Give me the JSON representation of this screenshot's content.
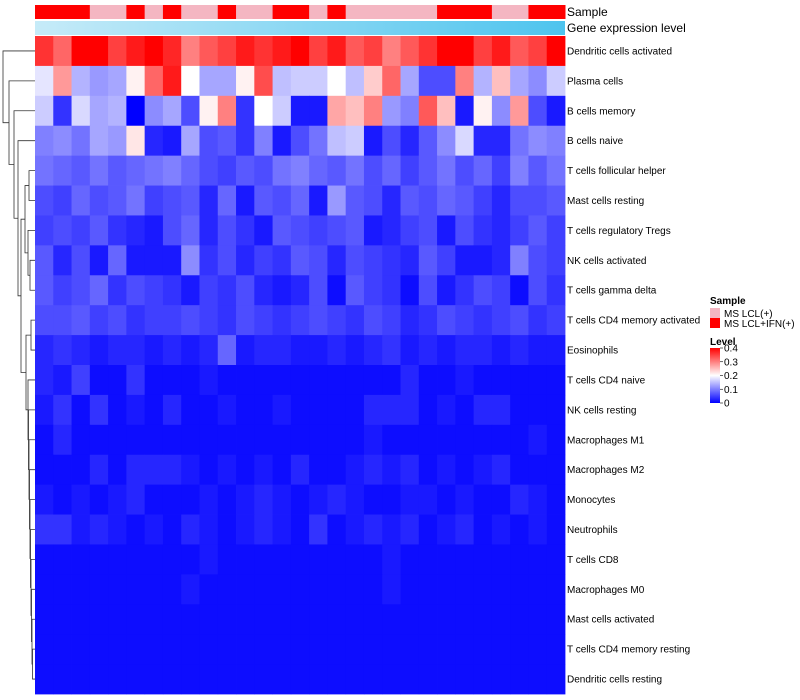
{
  "chart_data": {
    "type": "heatmap",
    "title": "",
    "annotation_tracks": [
      {
        "name": "Sample",
        "label": "Sample"
      },
      {
        "name": "Gene expression level",
        "label": "Gene expression level"
      }
    ],
    "sample_track": [
      1,
      1,
      1,
      0,
      0,
      1,
      0,
      1,
      0,
      0,
      1,
      0,
      0,
      1,
      1,
      0,
      1,
      0,
      0,
      0,
      0,
      0,
      1,
      1,
      1,
      0,
      0,
      1,
      1
    ],
    "expression_track": [
      0.05,
      0.1,
      0.15,
      0.2,
      0.25,
      0.3,
      0.35,
      0.4,
      0.45,
      0.5,
      0.55,
      0.6,
      0.62,
      0.65,
      0.68,
      0.7,
      0.72,
      0.75,
      0.78,
      0.8,
      0.82,
      0.85,
      0.88,
      0.9,
      0.92,
      0.94,
      0.96,
      0.98,
      1.0
    ],
    "rows": [
      "Dendritic cells activated",
      "Plasma cells",
      "B cells memory",
      "B cells naive",
      "T cells follicular helper",
      "Mast cells resting",
      "T cells regulatory  Tregs",
      "NK cells activated",
      "T cells gamma delta",
      "T cells CD4 memory activated",
      "Eosinophils",
      "T cells CD4 naive",
      "NK cells resting",
      "Macrophages M1",
      "Macrophages M2",
      "Monocytes",
      "Neutrophils",
      "T cells CD8",
      "Macrophages M0",
      "Mast cells activated",
      "T cells CD4 memory resting",
      "Dendritic cells resting"
    ],
    "values": [
      [
        0.36,
        0.32,
        0.4,
        0.4,
        0.35,
        0.38,
        0.4,
        0.37,
        0.3,
        0.33,
        0.35,
        0.38,
        0.36,
        0.38,
        0.4,
        0.35,
        0.38,
        0.33,
        0.35,
        0.3,
        0.33,
        0.36,
        0.4,
        0.4,
        0.35,
        0.38,
        0.33,
        0.35,
        0.4
      ],
      [
        0.18,
        0.28,
        0.14,
        0.12,
        0.13,
        0.21,
        0.32,
        0.38,
        0.2,
        0.13,
        0.13,
        0.21,
        0.34,
        0.15,
        0.16,
        0.16,
        0.2,
        0.15,
        0.24,
        0.32,
        0.13,
        0.06,
        0.06,
        0.3,
        0.14,
        0.25,
        0.13,
        0.11,
        0.16
      ],
      [
        0.16,
        0.04,
        0.17,
        0.13,
        0.14,
        0.0,
        0.11,
        0.13,
        0.06,
        0.21,
        0.3,
        0.04,
        0.2,
        0.16,
        0.02,
        0.02,
        0.27,
        0.25,
        0.3,
        0.12,
        0.1,
        0.33,
        0.25,
        0.02,
        0.21,
        0.11,
        0.28,
        0.06,
        0.02
      ],
      [
        0.1,
        0.11,
        0.09,
        0.13,
        0.12,
        0.22,
        0.03,
        0.02,
        0.13,
        0.06,
        0.07,
        0.04,
        0.1,
        0.02,
        0.06,
        0.09,
        0.15,
        0.16,
        0.02,
        0.06,
        0.03,
        0.07,
        0.11,
        0.17,
        0.03,
        0.03,
        0.09,
        0.11,
        0.1
      ],
      [
        0.09,
        0.08,
        0.07,
        0.09,
        0.07,
        0.08,
        0.09,
        0.1,
        0.08,
        0.06,
        0.05,
        0.07,
        0.06,
        0.09,
        0.1,
        0.08,
        0.07,
        0.09,
        0.06,
        0.08,
        0.05,
        0.07,
        0.09,
        0.06,
        0.08,
        0.05,
        0.1,
        0.07,
        0.09
      ],
      [
        0.06,
        0.05,
        0.08,
        0.06,
        0.07,
        0.09,
        0.05,
        0.06,
        0.07,
        0.03,
        0.08,
        0.02,
        0.07,
        0.06,
        0.08,
        0.02,
        0.12,
        0.07,
        0.06,
        0.03,
        0.07,
        0.06,
        0.08,
        0.07,
        0.05,
        0.03,
        0.06,
        0.06,
        0.07
      ],
      [
        0.05,
        0.06,
        0.05,
        0.07,
        0.04,
        0.03,
        0.02,
        0.06,
        0.08,
        0.03,
        0.06,
        0.04,
        0.02,
        0.07,
        0.06,
        0.05,
        0.06,
        0.07,
        0.02,
        0.03,
        0.05,
        0.06,
        0.02,
        0.06,
        0.04,
        0.03,
        0.05,
        0.07,
        0.05
      ],
      [
        0.07,
        0.03,
        0.06,
        0.02,
        0.08,
        0.02,
        0.02,
        0.02,
        0.11,
        0.04,
        0.06,
        0.03,
        0.05,
        0.04,
        0.07,
        0.06,
        0.03,
        0.06,
        0.05,
        0.04,
        0.03,
        0.07,
        0.05,
        0.02,
        0.02,
        0.03,
        0.1,
        0.06,
        0.05
      ],
      [
        0.07,
        0.05,
        0.06,
        0.08,
        0.04,
        0.06,
        0.05,
        0.04,
        0.02,
        0.05,
        0.04,
        0.06,
        0.03,
        0.02,
        0.03,
        0.06,
        0.01,
        0.07,
        0.05,
        0.04,
        0.01,
        0.06,
        0.02,
        0.04,
        0.06,
        0.05,
        0.01,
        0.06,
        0.04
      ],
      [
        0.06,
        0.06,
        0.07,
        0.05,
        0.06,
        0.04,
        0.05,
        0.05,
        0.06,
        0.05,
        0.04,
        0.06,
        0.05,
        0.04,
        0.05,
        0.06,
        0.05,
        0.04,
        0.06,
        0.05,
        0.03,
        0.04,
        0.06,
        0.05,
        0.04,
        0.05,
        0.06,
        0.04,
        0.05
      ],
      [
        0.03,
        0.04,
        0.03,
        0.02,
        0.03,
        0.03,
        0.02,
        0.03,
        0.02,
        0.03,
        0.08,
        0.02,
        0.03,
        0.03,
        0.02,
        0.02,
        0.03,
        0.02,
        0.03,
        0.04,
        0.02,
        0.03,
        0.02,
        0.03,
        0.03,
        0.02,
        0.03,
        0.02,
        0.02
      ],
      [
        0.03,
        0.02,
        0.05,
        0.01,
        0.01,
        0.04,
        0.01,
        0.01,
        0.01,
        0.02,
        0.01,
        0.01,
        0.01,
        0.01,
        0.01,
        0.01,
        0.01,
        0.01,
        0.01,
        0.01,
        0.03,
        0.01,
        0.01,
        0.02,
        0.01,
        0.01,
        0.01,
        0.01,
        0.01
      ],
      [
        0.02,
        0.04,
        0.01,
        0.04,
        0.01,
        0.02,
        0.01,
        0.03,
        0.01,
        0.01,
        0.02,
        0.01,
        0.01,
        0.02,
        0.01,
        0.01,
        0.01,
        0.01,
        0.03,
        0.03,
        0.03,
        0.01,
        0.02,
        0.01,
        0.03,
        0.03,
        0.01,
        0.01,
        0.01
      ],
      [
        0.01,
        0.03,
        0.01,
        0.01,
        0.01,
        0.01,
        0.01,
        0.01,
        0.01,
        0.01,
        0.01,
        0.01,
        0.01,
        0.01,
        0.01,
        0.01,
        0.01,
        0.01,
        0.02,
        0.01,
        0.01,
        0.01,
        0.01,
        0.01,
        0.01,
        0.01,
        0.01,
        0.02,
        0.01
      ],
      [
        0.01,
        0.01,
        0.01,
        0.03,
        0.01,
        0.03,
        0.03,
        0.03,
        0.02,
        0.01,
        0.02,
        0.01,
        0.02,
        0.01,
        0.03,
        0.01,
        0.01,
        0.02,
        0.03,
        0.02,
        0.03,
        0.01,
        0.02,
        0.01,
        0.02,
        0.03,
        0.01,
        0.01,
        0.01
      ],
      [
        0.02,
        0.01,
        0.02,
        0.01,
        0.02,
        0.03,
        0.01,
        0.01,
        0.01,
        0.02,
        0.01,
        0.02,
        0.03,
        0.02,
        0.01,
        0.02,
        0.03,
        0.02,
        0.01,
        0.01,
        0.02,
        0.02,
        0.01,
        0.02,
        0.01,
        0.01,
        0.03,
        0.02,
        0.01
      ],
      [
        0.04,
        0.04,
        0.02,
        0.03,
        0.02,
        0.01,
        0.02,
        0.01,
        0.03,
        0.02,
        0.01,
        0.02,
        0.03,
        0.02,
        0.01,
        0.04,
        0.01,
        0.02,
        0.03,
        0.02,
        0.03,
        0.01,
        0.02,
        0.03,
        0.01,
        0.02,
        0.01,
        0.02,
        0.01
      ],
      [
        0.01,
        0.01,
        0.01,
        0.01,
        0.01,
        0.01,
        0.01,
        0.01,
        0.01,
        0.02,
        0.01,
        0.01,
        0.01,
        0.01,
        0.01,
        0.01,
        0.01,
        0.01,
        0.01,
        0.02,
        0.01,
        0.01,
        0.01,
        0.01,
        0.01,
        0.01,
        0.01,
        0.01,
        0.01
      ],
      [
        0.01,
        0.01,
        0.01,
        0.01,
        0.01,
        0.01,
        0.01,
        0.01,
        0.02,
        0.01,
        0.01,
        0.01,
        0.01,
        0.01,
        0.01,
        0.01,
        0.01,
        0.01,
        0.01,
        0.02,
        0.01,
        0.01,
        0.01,
        0.01,
        0.01,
        0.01,
        0.01,
        0.01,
        0.01
      ],
      [
        0.01,
        0.01,
        0.01,
        0.01,
        0.01,
        0.01,
        0.01,
        0.01,
        0.01,
        0.01,
        0.01,
        0.01,
        0.01,
        0.01,
        0.01,
        0.01,
        0.01,
        0.01,
        0.01,
        0.01,
        0.01,
        0.01,
        0.01,
        0.01,
        0.01,
        0.01,
        0.01,
        0.01,
        0.01
      ],
      [
        0.01,
        0.01,
        0.01,
        0.01,
        0.01,
        0.01,
        0.01,
        0.01,
        0.01,
        0.01,
        0.01,
        0.01,
        0.01,
        0.01,
        0.01,
        0.01,
        0.01,
        0.01,
        0.01,
        0.01,
        0.01,
        0.01,
        0.01,
        0.01,
        0.01,
        0.01,
        0.01,
        0.01,
        0.01
      ],
      [
        0.01,
        0.01,
        0.01,
        0.01,
        0.01,
        0.01,
        0.01,
        0.01,
        0.01,
        0.01,
        0.01,
        0.01,
        0.01,
        0.01,
        0.01,
        0.01,
        0.01,
        0.01,
        0.01,
        0.01,
        0.01,
        0.01,
        0.01,
        0.01,
        0.01,
        0.01,
        0.01,
        0.01,
        0.01
      ]
    ],
    "legend_sample": {
      "title": "Sample",
      "entries": [
        {
          "label": "MS LCL(+)",
          "color": "#f4b6c2"
        },
        {
          "label": "MS LCL+IFN(+)",
          "color": "#ff0000"
        }
      ]
    },
    "legend_level": {
      "title": "Level",
      "ticks": [
        "0.4",
        "0.3",
        "0.2",
        "0.1",
        "0"
      ],
      "tick_values": [
        0.4,
        0.3,
        0.2,
        0.1,
        0
      ],
      "range": [
        0,
        0.4
      ],
      "colors": [
        "#0000ff",
        "#ffffff",
        "#ff0000"
      ]
    },
    "expression_colors": [
      "#b7e6f6",
      "#5bc6ee"
    ],
    "dendrogram": true
  }
}
